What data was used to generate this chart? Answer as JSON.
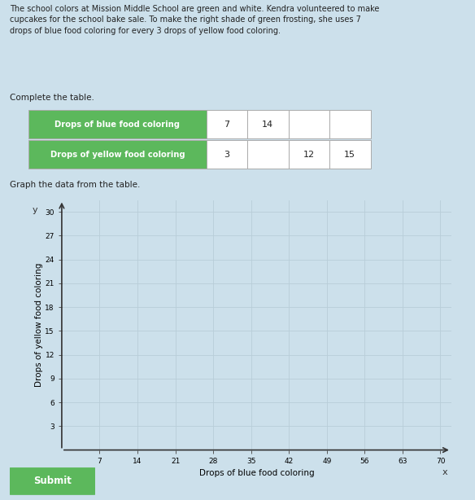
{
  "background_color": "#cce0eb",
  "text_paragraph": "The school colors at Mission Middle School are green and white. Kendra volunteered to make\ncupcakes for the school bake sale. To make the right shade of green frosting, she uses 7\ndrops of blue food coloring for every 3 drops of yellow food coloring.",
  "complete_table_label": "Complete the table.",
  "graph_label": "Graph the data from the table.",
  "table_header_blue": "Drops of blue food coloring",
  "table_header_yellow": "Drops of yellow food coloring",
  "table_green_color": "#5cb85c",
  "table_header_text_color": "#ffffff",
  "blue_values_display": [
    "7",
    "14",
    "",
    ""
  ],
  "yellow_values_display": [
    "3",
    "",
    "12",
    "15"
  ],
  "x_label": "Drops of blue food coloring",
  "y_label": "Drops of yellow food coloring",
  "x_ticks": [
    7,
    14,
    21,
    28,
    35,
    42,
    49,
    56,
    63,
    70
  ],
  "y_ticks": [
    3,
    6,
    9,
    12,
    15,
    18,
    21,
    24,
    27,
    30
  ],
  "x_max": 72,
  "y_max": 31.5,
  "grid_color": "#b8cdd8",
  "submit_button_color": "#5cb85c",
  "submit_text": "Submit",
  "submit_text_color": "#ffffff",
  "text_color": "#222222"
}
